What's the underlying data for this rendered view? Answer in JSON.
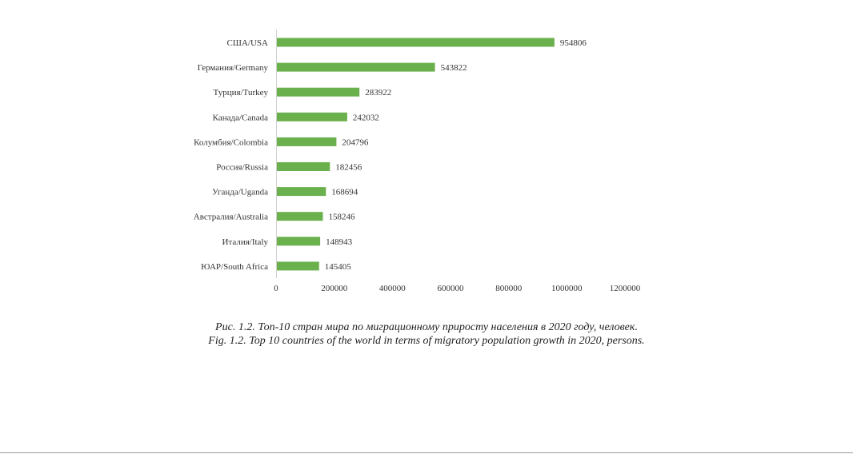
{
  "chart_data": {
    "type": "bar",
    "orientation": "horizontal",
    "categories": [
      "США/USA",
      "Германия/Germany",
      "Турция/Turkey",
      "Канада/Canada",
      "Колумбия/Colombia",
      "Россия/Russia",
      "Уганда/Uganda",
      "Австралия/Australia",
      "Италия/Italy",
      "ЮАР/South Africa"
    ],
    "values": [
      954806,
      543822,
      283922,
      242032,
      204796,
      182456,
      168694,
      158246,
      148943,
      145405
    ],
    "value_labels": [
      "954806",
      "543822",
      "283922",
      "242032",
      "204796",
      "182456",
      "168694",
      "158246",
      "148943",
      "145405"
    ],
    "xlim": [
      0,
      1200000
    ],
    "x_ticks": [
      0,
      200000,
      400000,
      600000,
      800000,
      1000000,
      1200000
    ],
    "x_tick_labels": [
      "0",
      "200000",
      "400000",
      "600000",
      "800000",
      "1000000",
      "1200000"
    ],
    "grid": false,
    "legend": "none",
    "bar_color": "#6ab04c"
  },
  "caption": {
    "ru": "Рис. 1.2. Топ-10 стран мира по миграционному приросту населения в 2020 году, человек.",
    "en": "Fig. 1.2. Top 10 countries of the world in terms of migratory population growth in 2020, persons."
  }
}
